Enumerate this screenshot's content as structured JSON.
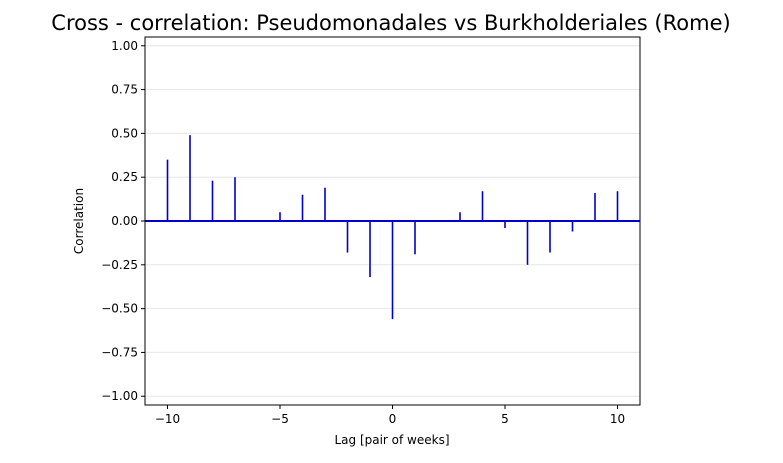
{
  "chart_data": {
    "type": "bar",
    "subtype": "stem",
    "title": "Cross - correlation: Pseudomonadales vs Burkholderiales (Rome)",
    "xlabel": "Lag [pair of weeks]",
    "ylabel": "Correlation",
    "xlim": [
      -11,
      11
    ],
    "ylim": [
      -1.05,
      1.05
    ],
    "x_ticks": [
      -10,
      -5,
      0,
      5,
      10
    ],
    "x_tick_labels": [
      "−10",
      "−5",
      "0",
      "5",
      "10"
    ],
    "y_ticks": [
      -1.0,
      -0.75,
      -0.5,
      -0.25,
      0.0,
      0.25,
      0.5,
      0.75,
      1.0
    ],
    "y_tick_labels": [
      "−1.00",
      "−0.75",
      "−0.50",
      "−0.25",
      "0.00",
      "0.25",
      "0.50",
      "0.75",
      "1.00"
    ],
    "grid": "horizontal",
    "baseline": 0,
    "color": "#0000cc",
    "lags": [
      -10,
      -9,
      -8,
      -7,
      -6,
      -5,
      -4,
      -3,
      -2,
      -1,
      0,
      1,
      2,
      3,
      4,
      5,
      6,
      7,
      8,
      9,
      10
    ],
    "values": [
      0.35,
      0.49,
      0.23,
      0.25,
      0.0,
      0.05,
      0.15,
      0.19,
      -0.18,
      -0.32,
      -0.56,
      -0.19,
      0.0,
      0.05,
      0.17,
      -0.04,
      -0.25,
      -0.18,
      -0.06,
      0.16,
      0.17
    ]
  }
}
